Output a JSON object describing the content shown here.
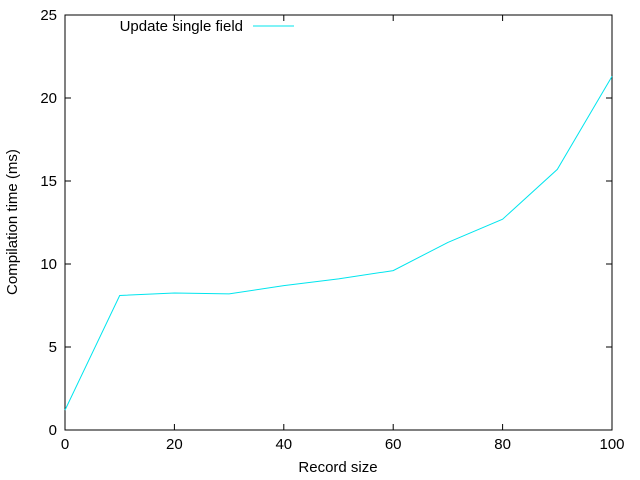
{
  "chart_data": {
    "type": "line",
    "title": "",
    "xlabel": "Record size",
    "ylabel": "Compilation time (ms)",
    "xlim": [
      0,
      100
    ],
    "ylim": [
      0,
      25
    ],
    "xticks": [
      0,
      20,
      40,
      60,
      80,
      100
    ],
    "yticks": [
      0,
      5,
      10,
      15,
      20,
      25
    ],
    "grid": false,
    "legend_position": "top-left",
    "series": [
      {
        "name": "Update single field",
        "color": "#00e5ee",
        "x": [
          0,
          10,
          20,
          30,
          40,
          50,
          60,
          70,
          80,
          90,
          100
        ],
        "y": [
          1.2,
          8.1,
          8.25,
          8.2,
          8.7,
          9.1,
          9.6,
          11.3,
          12.7,
          15.7,
          21.3
        ]
      }
    ]
  }
}
